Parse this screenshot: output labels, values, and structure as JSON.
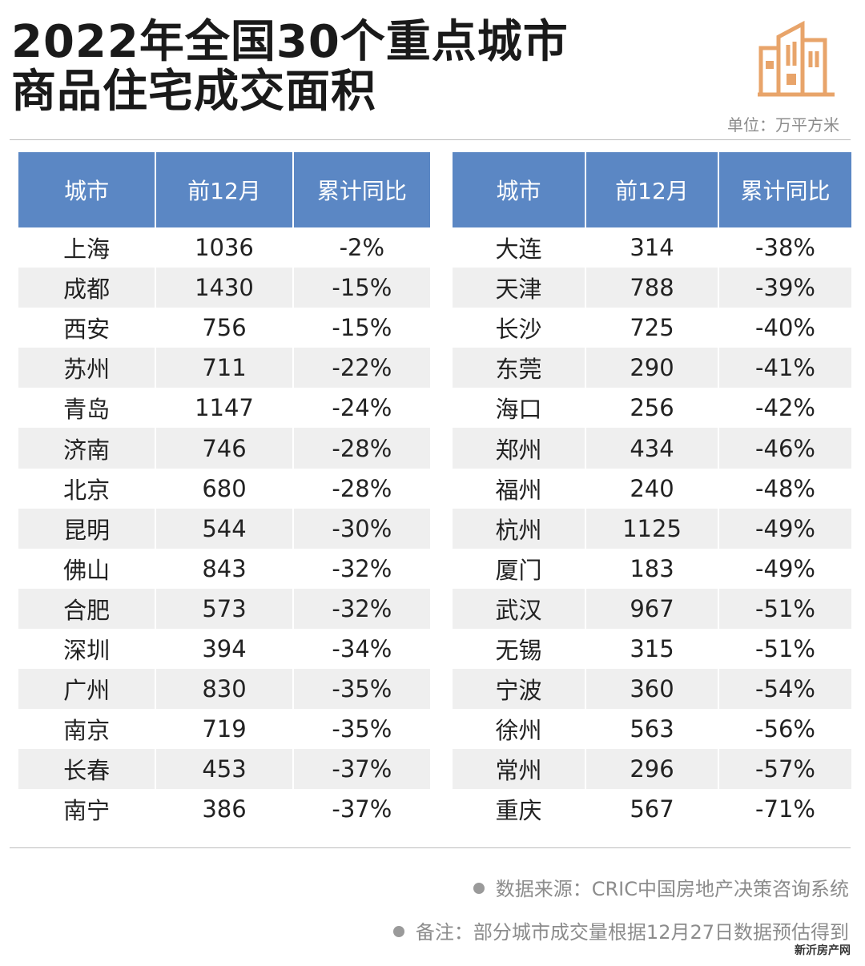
{
  "title_lines": [
    "2022年全国30个重点城市",
    "商品住宅成交面积"
  ],
  "unit": "单位：万平方米",
  "colors": {
    "header_bg": "#5b87c4",
    "stripe": "#efefef",
    "logo": "#e8a46a"
  },
  "logo_icon": "buildings-icon",
  "chart_data": {
    "type": "table",
    "columns": [
      "城市",
      "前12月",
      "累计同比"
    ],
    "left_rows": [
      [
        "上海",
        "1036",
        "-2%"
      ],
      [
        "成都",
        "1430",
        "-15%"
      ],
      [
        "西安",
        "756",
        "-15%"
      ],
      [
        "苏州",
        "711",
        "-22%"
      ],
      [
        "青岛",
        "1147",
        "-24%"
      ],
      [
        "济南",
        "746",
        "-28%"
      ],
      [
        "北京",
        "680",
        "-28%"
      ],
      [
        "昆明",
        "544",
        "-30%"
      ],
      [
        "佛山",
        "843",
        "-32%"
      ],
      [
        "合肥",
        "573",
        "-32%"
      ],
      [
        "深圳",
        "394",
        "-34%"
      ],
      [
        "广州",
        "830",
        "-35%"
      ],
      [
        "南京",
        "719",
        "-35%"
      ],
      [
        "长春",
        "453",
        "-37%"
      ],
      [
        "南宁",
        "386",
        "-37%"
      ]
    ],
    "right_rows": [
      [
        "大连",
        "314",
        "-38%"
      ],
      [
        "天津",
        "788",
        "-39%"
      ],
      [
        "长沙",
        "725",
        "-40%"
      ],
      [
        "东莞",
        "290",
        "-41%"
      ],
      [
        "海口",
        "256",
        "-42%"
      ],
      [
        "郑州",
        "434",
        "-46%"
      ],
      [
        "福州",
        "240",
        "-48%"
      ],
      [
        "杭州",
        "1125",
        "-49%"
      ],
      [
        "厦门",
        "183",
        "-49%"
      ],
      [
        "武汉",
        "967",
        "-51%"
      ],
      [
        "无锡",
        "315",
        "-51%"
      ],
      [
        "宁波",
        "360",
        "-54%"
      ],
      [
        "徐州",
        "563",
        "-56%"
      ],
      [
        "常州",
        "296",
        "-57%"
      ],
      [
        "重庆",
        "567",
        "-71%"
      ]
    ]
  },
  "footnotes": [
    "数据来源：CRIC中国房地产决策咨询系统",
    "备注：部分城市成交量根据12月27日数据预估得到"
  ],
  "corner_mark": "新沂房产网"
}
